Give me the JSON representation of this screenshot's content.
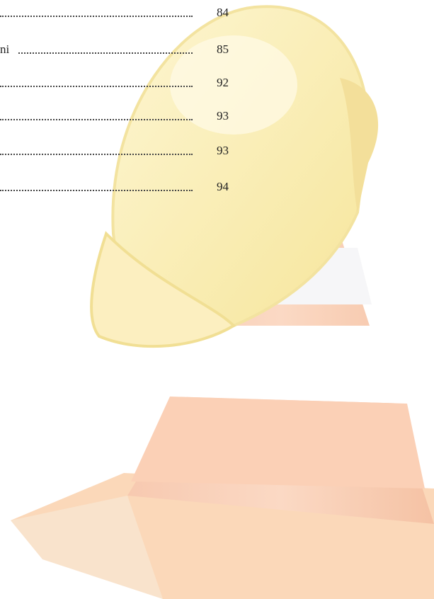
{
  "toc": [
    {
      "page": 84
    },
    {
      "label": "ni",
      "page": 85
    },
    {
      "page": 92
    },
    {
      "page": 93
    },
    {
      "page": 93
    },
    {
      "page": 94
    }
  ]
}
